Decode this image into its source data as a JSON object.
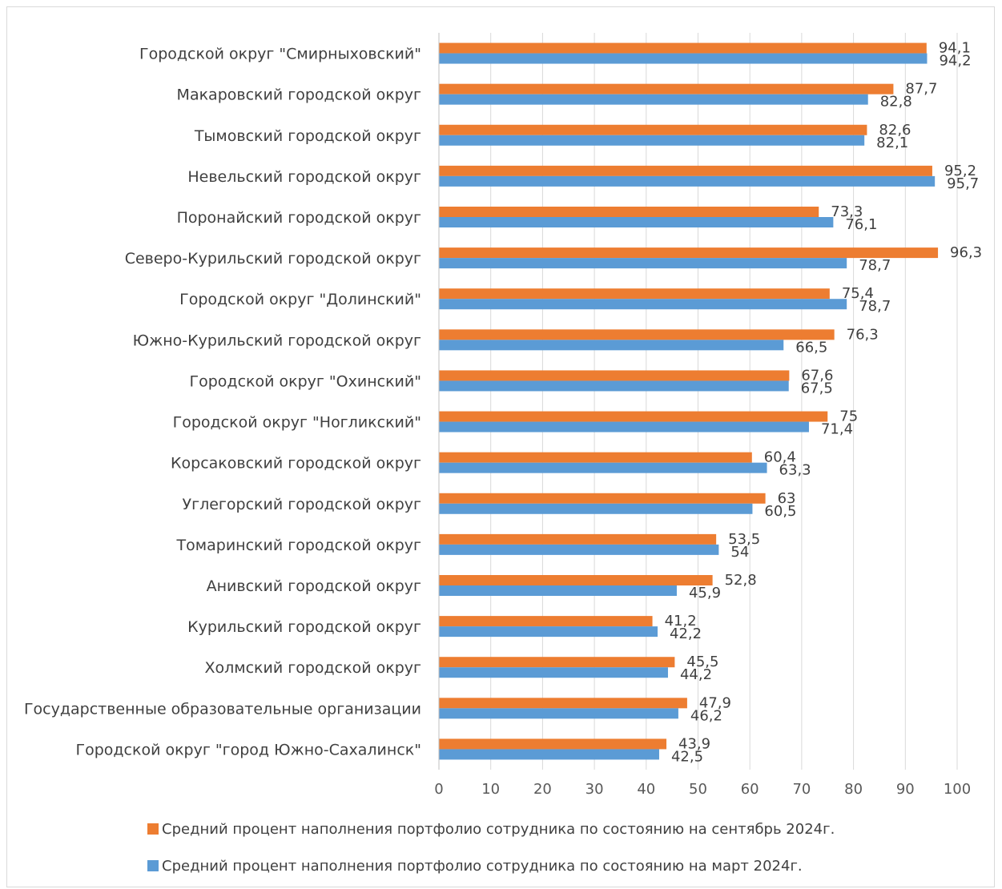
{
  "chart_data": {
    "type": "bar",
    "orientation": "horizontal",
    "categories": [
      "Городской округ \"Смирныховский\"",
      "Макаровский городской округ",
      "Тымовский городской округ",
      "Невельский городской округ",
      "Поронайский городской округ",
      "Северо-Курильский городской округ",
      "Городской округ \"Долинский\"",
      "Южно-Курильский городской округ",
      "Городской округ \"Охинский\"",
      "Городской округ \"Ногликский\"",
      "Корсаковский городской округ",
      "Углегорский городской округ",
      "Томаринский городской округ",
      "Анивский городской округ",
      "Курильский городской округ",
      "Холмский городской округ",
      "Государственные образовательные организации",
      "Городской округ \"город Южно-Сахалинск\""
    ],
    "series": [
      {
        "name": "Средний процент наполнения портфолио сотрудника по состоянию на сентябрь 2024г.",
        "color": "#ED7D31",
        "values": [
          94.1,
          87.7,
          82.6,
          95.2,
          73.3,
          96.3,
          75.4,
          76.3,
          67.6,
          75,
          60.4,
          63,
          53.5,
          52.8,
          41.2,
          45.5,
          47.9,
          43.9
        ],
        "labels": [
          "94,1",
          "87,7",
          "82,6",
          "95,2",
          "73,3",
          "96,3",
          "75,4",
          "76,3",
          "67,6",
          "75",
          "60,4",
          "63",
          "53,5",
          "52,8",
          "41,2",
          "45,5",
          "47,9",
          "43,9"
        ]
      },
      {
        "name": "Средний процент наполнения портфолио сотрудника по состоянию на март 2024г.",
        "color": "#5B9BD5",
        "values": [
          94.2,
          82.8,
          82.1,
          95.7,
          76.1,
          78.7,
          78.7,
          66.5,
          67.5,
          71.4,
          63.3,
          60.5,
          54,
          45.9,
          42.2,
          44.2,
          46.2,
          42.5
        ],
        "labels": [
          "94,2",
          "82,8",
          "82,1",
          "95,7",
          "76,1",
          "78,7",
          "78,7",
          "66,5",
          "67,5",
          "71,4",
          "63,3",
          "60,5",
          "54",
          "45,9",
          "42,2",
          "44,2",
          "46,2",
          "42,5"
        ]
      }
    ],
    "xlim": [
      0,
      100
    ],
    "xticks": [
      "0",
      "10",
      "20",
      "30",
      "40",
      "50",
      "60",
      "70",
      "80",
      "90",
      "100"
    ],
    "grid": true,
    "legend_position": "bottom"
  }
}
